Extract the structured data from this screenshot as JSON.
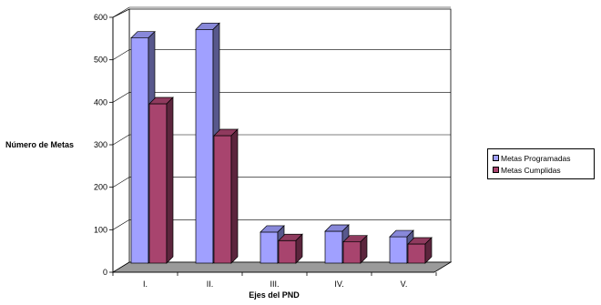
{
  "chart_data": {
    "type": "bar",
    "style": "3d-clustered",
    "categories": [
      "I.",
      "II.",
      "III.",
      "IV.",
      "V."
    ],
    "series": [
      {
        "name": "Metas Programadas",
        "color": "#a0a0ff",
        "values": [
          530,
          550,
          73,
          75,
          62
        ]
      },
      {
        "name": "Metas Cumplidas",
        "color": "#a8446e",
        "values": [
          375,
          300,
          53,
          50,
          45
        ]
      }
    ],
    "xlabel": "Ejes del PND",
    "ylabel": "Número de Metas",
    "yticks": [
      0,
      100,
      200,
      300,
      400,
      500,
      600
    ],
    "ylim": [
      0,
      600
    ],
    "grid": true,
    "legend_position": "right"
  }
}
